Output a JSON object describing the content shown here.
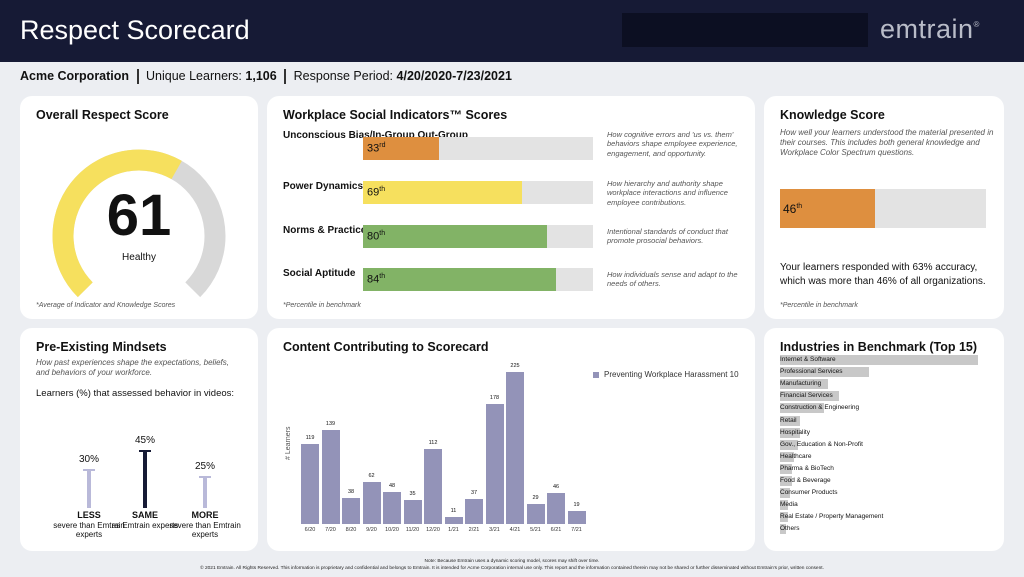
{
  "header": {
    "title": "Respect Scorecard",
    "logo": "emtrain",
    "logo_mark": "®"
  },
  "info": {
    "company": "Acme Corporation",
    "learners_label": "Unique Learners:",
    "learners_value": "1,106",
    "period_label": "Response Period:",
    "period_value": "4/20/2020-7/23/2021"
  },
  "overall": {
    "title": "Overall Respect Score",
    "score": "61",
    "score_fraction": 0.61,
    "status": "Healthy",
    "note": "*Average of Indicator and Knowledge Scores",
    "colors": {
      "fill": "#f6e05e",
      "track": "#d8d8d8"
    }
  },
  "indicators": {
    "title": "Workplace Social Indicators™ Scores",
    "note": "*Percentile in benchmark",
    "items": [
      {
        "label": "Unconscious Bias/In-Group Out-Group",
        "value_num": "33",
        "value_suffix": "rd",
        "percent": 33,
        "color": "#de8f3f",
        "desc": "How cognitive errors and 'us vs. them' behaviors shape employee experience, engagement, and opportunity."
      },
      {
        "label": "Power Dynamics",
        "value_num": "69",
        "value_suffix": "th",
        "percent": 69,
        "color": "#f6e05e",
        "desc": "How hierarchy and authority shape workplace interactions and influence employee contributions."
      },
      {
        "label": "Norms & Practices",
        "value_num": "80",
        "value_suffix": "th",
        "percent": 80,
        "color": "#82b366",
        "desc": "Intentional standards of conduct that promote prosocial behaviors."
      },
      {
        "label": "Social Aptitude",
        "value_num": "84",
        "value_suffix": "th",
        "percent": 84,
        "color": "#82b366",
        "desc": "How individuals sense and adapt to the needs of others."
      }
    ]
  },
  "knowledge": {
    "title": "Knowledge Score",
    "desc": "How well your learners understood the material presented in their courses. This includes both general knowledge and Workplace Color Spectrum questions.",
    "value_num": "46",
    "value_suffix": "th",
    "percent": 46,
    "result": "Your learners responded with 63% accuracy, which was more than 46% of all organizations.",
    "note": "*Percentile in benchmark"
  },
  "mindsets": {
    "title": "Pre-Existing Mindsets",
    "desc": "How past experiences shape the expectations, beliefs, and behaviors of your workforce.",
    "subtitle": "Learners (%) that assessed behavior in videos:",
    "items": [
      {
        "pct": "30%",
        "value": 30,
        "name": "LESS",
        "note": "severe than Emtrain experts",
        "color": "#b9b9d9"
      },
      {
        "pct": "45%",
        "value": 45,
        "name": "SAME",
        "note": "as Emtrain experts",
        "color": "#161a35"
      },
      {
        "pct": "25%",
        "value": 25,
        "name": "MORE",
        "note": "severe than Emtrain experts",
        "color": "#b9b9d9"
      }
    ]
  },
  "content_chart": {
    "title": "Content Contributing to Scorecard",
    "legend": "Preventing Workplace Harassment 10",
    "ylabel": "# Learners",
    "color": "#9393b8"
  },
  "chart_data": {
    "type": "bar",
    "categories": [
      "6/20",
      "7/20",
      "8/20",
      "9/20",
      "10/20",
      "11/20",
      "12/20",
      "1/21",
      "2/21",
      "3/21",
      "4/21",
      "5/21",
      "6/21",
      "7/21"
    ],
    "series": [
      {
        "name": "Preventing Workplace Harassment 10",
        "values": [
          119,
          139,
          38,
          62,
          48,
          35,
          112,
          11,
          37,
          178,
          225,
          29,
          46,
          19
        ]
      }
    ],
    "xlabel": "",
    "ylabel": "# Learners",
    "ylim": [
      0,
      230
    ],
    "legend": "top-right",
    "grid": false
  },
  "industries": {
    "title": "Industries in Benchmark (Top 15)",
    "items": [
      {
        "name": "Internet & Software",
        "value": 100
      },
      {
        "name": "Professional Services",
        "value": 45
      },
      {
        "name": "Manufacturing",
        "value": 24
      },
      {
        "name": "Financial Services",
        "value": 30
      },
      {
        "name": "Construction & Engineering",
        "value": 22
      },
      {
        "name": "Retail",
        "value": 10
      },
      {
        "name": "Hospitality",
        "value": 10
      },
      {
        "name": "Gov., Education & Non-Profit",
        "value": 9
      },
      {
        "name": "Healthcare",
        "value": 7
      },
      {
        "name": "Pharma & BioTech",
        "value": 6
      },
      {
        "name": "Food & Beverage",
        "value": 6
      },
      {
        "name": "Consumer Products",
        "value": 5
      },
      {
        "name": "Media",
        "value": 4
      },
      {
        "name": "Real Estate / Property Management",
        "value": 4
      },
      {
        "name": "Others",
        "value": 3
      }
    ]
  },
  "footer": {
    "line1": "Note: Because Emtrain uses a dynamic scoring model, scores may shift over time.",
    "line2": "© 2021 Emtrain. All Rights Reserved. This information is proprietary and confidential and belongs to Emtrain. It is intended for Acme Corporation internal use only. This report and the information contained therein may not be shared or further disseminated without Emtrain's prior, written consent."
  }
}
